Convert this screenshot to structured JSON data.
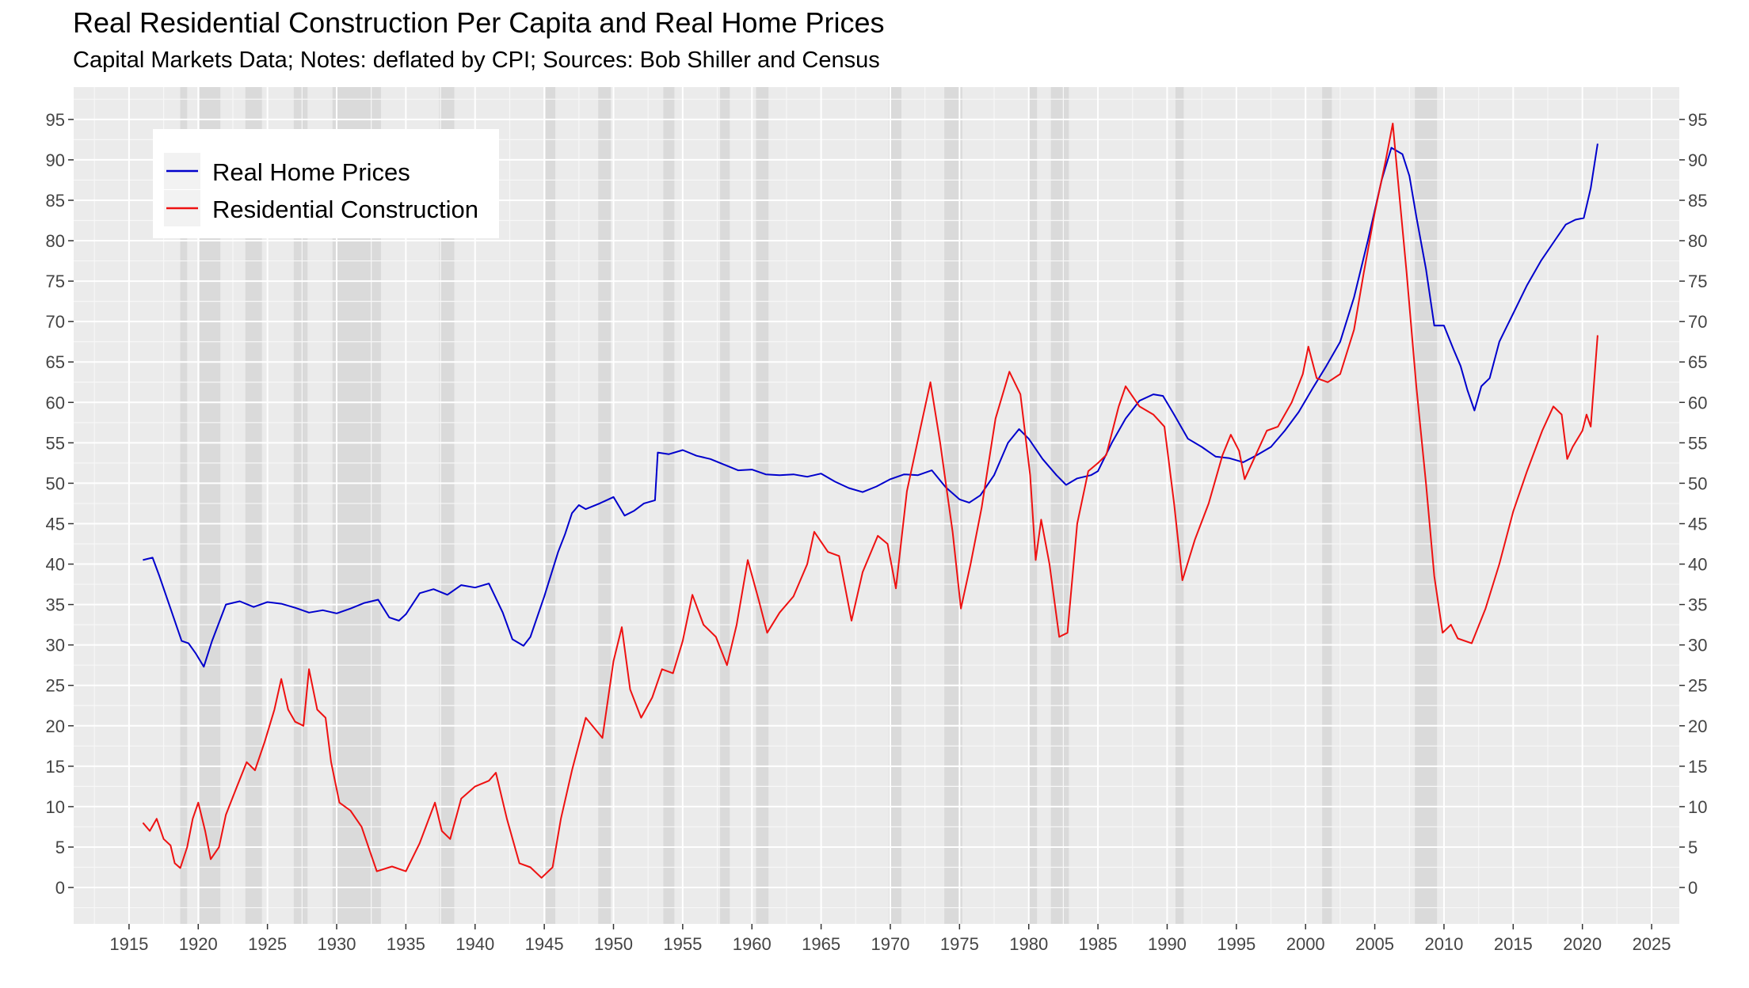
{
  "chart_data": {
    "type": "line",
    "title": "Real Residential Construction Per Capita and Real Home Prices",
    "subtitle": "Capital Markets Data; Notes: deflated by CPI; Sources: Bob Shiller and Census",
    "xlim": [
      1911,
      2027
    ],
    "ylim": [
      -4.5,
      99
    ],
    "x_ticks": [
      1915,
      1920,
      1925,
      1930,
      1935,
      1940,
      1945,
      1950,
      1955,
      1960,
      1965,
      1970,
      1975,
      1980,
      1985,
      1990,
      1995,
      2000,
      2005,
      2010,
      2015,
      2020,
      2025
    ],
    "y_ticks": [
      0,
      5,
      10,
      15,
      20,
      25,
      30,
      35,
      40,
      45,
      50,
      55,
      60,
      65,
      70,
      75,
      80,
      85,
      90,
      95
    ],
    "grid": true,
    "legend_position": "top-left",
    "recessions": [
      [
        1918.7,
        1919.2
      ],
      [
        1920.1,
        1921.6
      ],
      [
        1923.4,
        1924.6
      ],
      [
        1926.9,
        1927.9
      ],
      [
        1929.7,
        1933.2
      ],
      [
        1937.4,
        1938.5
      ],
      [
        1945.1,
        1945.8
      ],
      [
        1948.9,
        1949.8
      ],
      [
        1953.6,
        1954.4
      ],
      [
        1957.7,
        1958.4
      ],
      [
        1960.3,
        1961.2
      ],
      [
        1969.9,
        1970.8
      ],
      [
        1973.9,
        1975.2
      ],
      [
        1980.0,
        1980.6
      ],
      [
        1981.6,
        1982.9
      ],
      [
        1990.6,
        1991.2
      ],
      [
        2001.2,
        2001.9
      ],
      [
        2007.9,
        2009.5
      ]
    ],
    "series": [
      {
        "name": "Real Home Prices",
        "color": "#0000cc",
        "points": [
          [
            1916,
            40.5
          ],
          [
            1916.7,
            40.8
          ],
          [
            1917.2,
            38.5
          ],
          [
            1918,
            34.5
          ],
          [
            1918.8,
            30.5
          ],
          [
            1919.3,
            30.2
          ],
          [
            1919.8,
            29.0
          ],
          [
            1920.4,
            27.3
          ],
          [
            1921,
            30.5
          ],
          [
            1922,
            35.0
          ],
          [
            1923,
            35.4
          ],
          [
            1924,
            34.7
          ],
          [
            1925,
            35.3
          ],
          [
            1926,
            35.1
          ],
          [
            1927,
            34.6
          ],
          [
            1928,
            34.0
          ],
          [
            1929,
            34.3
          ],
          [
            1930,
            33.9
          ],
          [
            1931,
            34.5
          ],
          [
            1932,
            35.2
          ],
          [
            1933,
            35.6
          ],
          [
            1933.8,
            33.4
          ],
          [
            1934.5,
            33.0
          ],
          [
            1935,
            33.8
          ],
          [
            1936,
            36.4
          ],
          [
            1937,
            36.9
          ],
          [
            1938,
            36.2
          ],
          [
            1939,
            37.4
          ],
          [
            1940,
            37.1
          ],
          [
            1941,
            37.6
          ],
          [
            1942,
            34.0
          ],
          [
            1942.7,
            30.7
          ],
          [
            1943.5,
            29.9
          ],
          [
            1944,
            31.0
          ],
          [
            1945,
            36.0
          ],
          [
            1946,
            41.5
          ],
          [
            1946.5,
            43.7
          ],
          [
            1947,
            46.3
          ],
          [
            1947.5,
            47.3
          ],
          [
            1948,
            46.8
          ],
          [
            1949,
            47.5
          ],
          [
            1950,
            48.3
          ],
          [
            1950.8,
            46.0
          ],
          [
            1951.5,
            46.6
          ],
          [
            1952.2,
            47.5
          ],
          [
            1953,
            47.9
          ],
          [
            1953.2,
            53.8
          ],
          [
            1954,
            53.6
          ],
          [
            1955,
            54.1
          ],
          [
            1956,
            53.4
          ],
          [
            1957,
            53.0
          ],
          [
            1958,
            52.3
          ],
          [
            1959,
            51.6
          ],
          [
            1960,
            51.7
          ],
          [
            1961,
            51.1
          ],
          [
            1962,
            51.0
          ],
          [
            1963,
            51.1
          ],
          [
            1964,
            50.8
          ],
          [
            1965,
            51.2
          ],
          [
            1966,
            50.2
          ],
          [
            1967,
            49.4
          ],
          [
            1968,
            48.9
          ],
          [
            1969,
            49.6
          ],
          [
            1970,
            50.5
          ],
          [
            1971,
            51.1
          ],
          [
            1972,
            51.0
          ],
          [
            1973,
            51.6
          ],
          [
            1974,
            49.5
          ],
          [
            1975,
            48.0
          ],
          [
            1975.7,
            47.6
          ],
          [
            1976.5,
            48.5
          ],
          [
            1977.5,
            51.0
          ],
          [
            1978.5,
            55.0
          ],
          [
            1979.3,
            56.7
          ],
          [
            1980,
            55.5
          ],
          [
            1981,
            53.0
          ],
          [
            1982,
            51.0
          ],
          [
            1982.7,
            49.8
          ],
          [
            1983.5,
            50.6
          ],
          [
            1984.5,
            51.0
          ],
          [
            1985,
            51.5
          ],
          [
            1986,
            55.0
          ],
          [
            1987,
            58.0
          ],
          [
            1988,
            60.2
          ],
          [
            1989,
            61.0
          ],
          [
            1989.7,
            60.8
          ],
          [
            1990.5,
            58.5
          ],
          [
            1991.5,
            55.5
          ],
          [
            1992.5,
            54.5
          ],
          [
            1993.5,
            53.3
          ],
          [
            1994.5,
            53.1
          ],
          [
            1995.5,
            52.6
          ],
          [
            1996.5,
            53.5
          ],
          [
            1997.5,
            54.5
          ],
          [
            1998.5,
            56.5
          ],
          [
            1999.5,
            58.8
          ],
          [
            2000.5,
            61.7
          ],
          [
            2001.5,
            64.5
          ],
          [
            2002.5,
            67.5
          ],
          [
            2003.5,
            73.0
          ],
          [
            2004.5,
            80.0
          ],
          [
            2005.5,
            87.5
          ],
          [
            2006.2,
            91.5
          ],
          [
            2007,
            90.7
          ],
          [
            2007.5,
            88.0
          ],
          [
            2008,
            83.0
          ],
          [
            2008.7,
            76.5
          ],
          [
            2009.3,
            69.5
          ],
          [
            2010,
            69.5
          ],
          [
            2010.7,
            66.5
          ],
          [
            2011.2,
            64.5
          ],
          [
            2011.7,
            61.5
          ],
          [
            2012.2,
            59.0
          ],
          [
            2012.7,
            62.0
          ],
          [
            2013.3,
            63.0
          ],
          [
            2014,
            67.5
          ],
          [
            2015,
            71.0
          ],
          [
            2016,
            74.5
          ],
          [
            2017,
            77.5
          ],
          [
            2018,
            80.0
          ],
          [
            2018.8,
            82.0
          ],
          [
            2019.5,
            82.6
          ],
          [
            2020.1,
            82.8
          ],
          [
            2020.6,
            86.5
          ],
          [
            2021.1,
            92.0
          ]
        ]
      },
      {
        "name": "Residential Construction",
        "color": "#ee1111",
        "points": [
          [
            1916,
            8.0
          ],
          [
            1916.5,
            7.0
          ],
          [
            1917,
            8.5
          ],
          [
            1917.5,
            6.0
          ],
          [
            1918,
            5.2
          ],
          [
            1918.3,
            3.0
          ],
          [
            1918.7,
            2.4
          ],
          [
            1919.2,
            5.0
          ],
          [
            1919.6,
            8.5
          ],
          [
            1920,
            10.5
          ],
          [
            1920.5,
            7.0
          ],
          [
            1920.9,
            3.5
          ],
          [
            1921.5,
            5.0
          ],
          [
            1922,
            9.0
          ],
          [
            1922.8,
            12.5
          ],
          [
            1923.5,
            15.5
          ],
          [
            1924.1,
            14.5
          ],
          [
            1924.8,
            18.0
          ],
          [
            1925.5,
            22.0
          ],
          [
            1926,
            25.8
          ],
          [
            1926.5,
            22.0
          ],
          [
            1927,
            20.5
          ],
          [
            1927.6,
            20.0
          ],
          [
            1928,
            27.0
          ],
          [
            1928.6,
            22.0
          ],
          [
            1929.2,
            21.0
          ],
          [
            1929.6,
            15.5
          ],
          [
            1930.2,
            10.5
          ],
          [
            1931,
            9.5
          ],
          [
            1931.8,
            7.5
          ],
          [
            1932.4,
            4.5
          ],
          [
            1932.9,
            2.0
          ],
          [
            1934,
            2.6
          ],
          [
            1935,
            2.0
          ],
          [
            1936,
            5.5
          ],
          [
            1937.1,
            10.5
          ],
          [
            1937.6,
            7.0
          ],
          [
            1938.2,
            6.0
          ],
          [
            1939,
            11.0
          ],
          [
            1940,
            12.5
          ],
          [
            1941,
            13.2
          ],
          [
            1941.5,
            14.2
          ],
          [
            1942.3,
            8.5
          ],
          [
            1943.2,
            3.0
          ],
          [
            1944,
            2.5
          ],
          [
            1944.8,
            1.2
          ],
          [
            1945.6,
            2.5
          ],
          [
            1946.2,
            8.5
          ],
          [
            1947,
            14.5
          ],
          [
            1948,
            21.0
          ],
          [
            1949.2,
            18.5
          ],
          [
            1950,
            28.0
          ],
          [
            1950.6,
            32.2
          ],
          [
            1951.2,
            24.5
          ],
          [
            1952,
            21.0
          ],
          [
            1952.8,
            23.5
          ],
          [
            1953.5,
            27.0
          ],
          [
            1954.3,
            26.5
          ],
          [
            1955,
            30.5
          ],
          [
            1955.7,
            36.2
          ],
          [
            1956.5,
            32.5
          ],
          [
            1957.4,
            31.0
          ],
          [
            1958.2,
            27.5
          ],
          [
            1958.9,
            32.5
          ],
          [
            1959.7,
            40.5
          ],
          [
            1960.5,
            35.5
          ],
          [
            1961.1,
            31.5
          ],
          [
            1962,
            34.0
          ],
          [
            1963,
            36.0
          ],
          [
            1964,
            40.0
          ],
          [
            1964.5,
            44.0
          ],
          [
            1965.5,
            41.5
          ],
          [
            1966.3,
            41.0
          ],
          [
            1967.2,
            33.0
          ],
          [
            1968,
            39.0
          ],
          [
            1969.1,
            43.5
          ],
          [
            1969.8,
            42.5
          ],
          [
            1970.4,
            37.0
          ],
          [
            1971.2,
            49.0
          ],
          [
            1972.2,
            57.0
          ],
          [
            1972.9,
            62.5
          ],
          [
            1973.6,
            55.0
          ],
          [
            1974.5,
            44.0
          ],
          [
            1975.1,
            34.5
          ],
          [
            1975.8,
            40.0
          ],
          [
            1976.6,
            47.0
          ],
          [
            1977.6,
            58.0
          ],
          [
            1978.6,
            63.8
          ],
          [
            1979.4,
            61.0
          ],
          [
            1980.1,
            51.0
          ],
          [
            1980.5,
            40.5
          ],
          [
            1980.9,
            45.5
          ],
          [
            1981.5,
            40.0
          ],
          [
            1982.2,
            31.0
          ],
          [
            1982.8,
            31.5
          ],
          [
            1983.5,
            45.0
          ],
          [
            1984.3,
            51.5
          ],
          [
            1985,
            52.5
          ],
          [
            1985.6,
            53.5
          ],
          [
            1986.5,
            59.5
          ],
          [
            1987,
            62.0
          ],
          [
            1988,
            59.5
          ],
          [
            1989,
            58.5
          ],
          [
            1989.8,
            57.0
          ],
          [
            1990.5,
            47.5
          ],
          [
            1991.1,
            38.0
          ],
          [
            1992,
            43.0
          ],
          [
            1993,
            47.5
          ],
          [
            1994,
            53.5
          ],
          [
            1994.6,
            56.0
          ],
          [
            1995.2,
            54.0
          ],
          [
            1995.6,
            50.5
          ],
          [
            1996.4,
            53.5
          ],
          [
            1997.2,
            56.5
          ],
          [
            1998,
            57.0
          ],
          [
            1999,
            60.0
          ],
          [
            1999.8,
            63.5
          ],
          [
            2000.2,
            66.9
          ],
          [
            2000.8,
            63.0
          ],
          [
            2001.6,
            62.5
          ],
          [
            2002.5,
            63.5
          ],
          [
            2003.5,
            69.0
          ],
          [
            2004.2,
            76.0
          ],
          [
            2005,
            83.5
          ],
          [
            2005.8,
            90.0
          ],
          [
            2006.3,
            94.5
          ],
          [
            2006.7,
            87.0
          ],
          [
            2007.3,
            76.0
          ],
          [
            2008,
            62.0
          ],
          [
            2008.7,
            50.0
          ],
          [
            2009.3,
            38.5
          ],
          [
            2009.9,
            31.5
          ],
          [
            2010.5,
            32.5
          ],
          [
            2011,
            30.8
          ],
          [
            2012,
            30.2
          ],
          [
            2013,
            34.5
          ],
          [
            2014,
            40.0
          ],
          [
            2015,
            46.5
          ],
          [
            2016,
            51.5
          ],
          [
            2017.1,
            56.5
          ],
          [
            2017.9,
            59.5
          ],
          [
            2018.5,
            58.5
          ],
          [
            2018.9,
            53.0
          ],
          [
            2019.3,
            54.5
          ],
          [
            2020,
            56.5
          ],
          [
            2020.3,
            58.5
          ],
          [
            2020.6,
            57.0
          ],
          [
            2021.1,
            68.3
          ]
        ]
      }
    ]
  }
}
